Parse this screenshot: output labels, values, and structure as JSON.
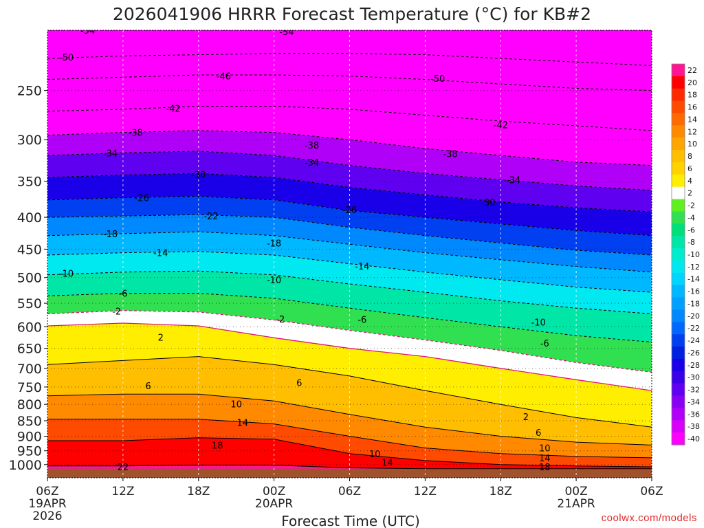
{
  "chart_data": {
    "type": "heatmap",
    "title": "2026041906 HRRR Forecast Temperature (°C) for KB#2",
    "xlabel": "Forecast Time (UTC)",
    "ylabel": "",
    "credit": "coolwx.com/models",
    "yscale": "log",
    "ylim": [
      1050,
      200
    ],
    "y_ticks": [
      250,
      300,
      350,
      400,
      450,
      500,
      550,
      600,
      650,
      700,
      750,
      800,
      850,
      900,
      950,
      1000
    ],
    "y_tick_labels": [
      "250",
      "300",
      "350",
      "400",
      "450",
      "500",
      "550",
      "600",
      "650",
      "700",
      "750",
      "800",
      "850",
      "900",
      "950",
      "1000"
    ],
    "x_hours": [
      0,
      6,
      12,
      18,
      24,
      30,
      36,
      42,
      48
    ],
    "x_tick_labels": [
      [
        "06Z",
        "19APR",
        "2026"
      ],
      [
        "12Z"
      ],
      [
        "18Z"
      ],
      [
        "00Z",
        "20APR"
      ],
      [
        "06Z"
      ],
      [
        "12Z"
      ],
      [
        "18Z"
      ],
      [
        "00Z",
        "21APR"
      ],
      [
        "06Z"
      ]
    ],
    "ground_level_hpa": 1015,
    "isotherms": [
      {
        "temp": -54,
        "p": [
          200,
          200,
          200,
          200,
          200,
          200,
          200,
          200,
          200
        ]
      },
      {
        "temp": -50,
        "p": [
          222,
          220,
          219,
          218,
          218,
          219,
          222,
          225,
          228
        ]
      },
      {
        "temp": -46,
        "p": [
          240,
          238,
          236,
          236,
          237,
          240,
          244,
          248,
          250
        ]
      },
      {
        "temp": -42,
        "p": [
          270,
          268,
          265,
          265,
          268,
          274,
          280,
          285,
          290
        ]
      },
      {
        "temp": -38,
        "p": [
          295,
          292,
          290,
          292,
          300,
          310,
          318,
          326,
          330
        ]
      },
      {
        "temp": -34,
        "p": [
          318,
          315,
          313,
          318,
          330,
          340,
          348,
          356,
          362
        ]
      },
      {
        "temp": -30,
        "p": [
          345,
          342,
          340,
          345,
          358,
          368,
          378,
          386,
          392
        ]
      },
      {
        "temp": -26,
        "p": [
          375,
          372,
          370,
          375,
          390,
          400,
          410,
          420,
          428
        ]
      },
      {
        "temp": -22,
        "p": [
          400,
          398,
          396,
          400,
          415,
          428,
          440,
          452,
          460
        ]
      },
      {
        "temp": -18,
        "p": [
          428,
          425,
          422,
          428,
          442,
          456,
          468,
          480,
          490
        ]
      },
      {
        "temp": -14,
        "p": [
          460,
          456,
          454,
          460,
          475,
          490,
          504,
          518,
          528
        ]
      },
      {
        "temp": -10,
        "p": [
          495,
          490,
          488,
          495,
          512,
          528,
          545,
          560,
          572
        ]
      },
      {
        "temp": -6,
        "p": [
          535,
          530,
          530,
          540,
          560,
          580,
          600,
          620,
          635
        ]
      },
      {
        "temp": -2,
        "p": [
          572,
          565,
          568,
          585,
          608,
          630,
          655,
          685,
          710
        ]
      },
      {
        "temp": 2,
        "p": [
          598,
          592,
          598,
          625,
          650,
          670,
          700,
          730,
          760
        ]
      },
      {
        "temp": 6,
        "p": [
          690,
          680,
          670,
          690,
          720,
          760,
          800,
          840,
          870
        ]
      },
      {
        "temp": 10,
        "p": [
          775,
          770,
          770,
          790,
          830,
          870,
          900,
          920,
          930
        ]
      },
      {
        "temp": 14,
        "p": [
          845,
          845,
          845,
          860,
          900,
          940,
          960,
          970,
          975
        ]
      },
      {
        "temp": 18,
        "p": [
          915,
          915,
          905,
          910,
          960,
          985,
          1000,
          1005,
          1008
        ]
      },
      {
        "temp": 22,
        "p": [
          1005,
          1005,
          1002,
          1002,
          1012,
          1015,
          1015,
          1015,
          1015
        ]
      }
    ],
    "contour_labels": [
      {
        "text": "-54",
        "h": 3.2,
        "p": 200
      },
      {
        "text": "-54",
        "h": 19,
        "p": 201
      },
      {
        "text": "-50",
        "h": 1.5,
        "p": 221
      },
      {
        "text": "-50",
        "h": 31,
        "p": 239
      },
      {
        "text": "-46",
        "h": 14,
        "p": 237
      },
      {
        "text": "-42",
        "h": 10,
        "p": 267
      },
      {
        "text": "-42",
        "h": 36,
        "p": 284
      },
      {
        "text": "-38",
        "h": 7,
        "p": 292
      },
      {
        "text": "-38",
        "h": 21,
        "p": 306
      },
      {
        "text": "-38",
        "h": 32,
        "p": 316
      },
      {
        "text": "-34",
        "h": 5,
        "p": 315
      },
      {
        "text": "-34",
        "h": 21,
        "p": 326
      },
      {
        "text": "-34",
        "h": 37,
        "p": 348
      },
      {
        "text": "-30",
        "h": 12,
        "p": 341
      },
      {
        "text": "-30",
        "h": 35,
        "p": 378
      },
      {
        "text": "-26",
        "h": 7.5,
        "p": 372
      },
      {
        "text": "-26",
        "h": 24,
        "p": 389
      },
      {
        "text": "-22",
        "h": 13,
        "p": 398
      },
      {
        "text": "-18",
        "h": 5,
        "p": 425
      },
      {
        "text": "-18",
        "h": 18,
        "p": 440
      },
      {
        "text": "-14",
        "h": 9,
        "p": 456
      },
      {
        "text": "-14",
        "h": 25,
        "p": 479
      },
      {
        "text": "-10",
        "h": 1.5,
        "p": 492
      },
      {
        "text": "-10",
        "h": 18,
        "p": 504
      },
      {
        "text": "-10",
        "h": 39,
        "p": 590
      },
      {
        "text": "-6",
        "h": 6,
        "p": 530
      },
      {
        "text": "-6",
        "h": 25,
        "p": 584
      },
      {
        "text": "-6",
        "h": 39.5,
        "p": 637
      },
      {
        "text": "-2",
        "h": 5.5,
        "p": 566
      },
      {
        "text": "-2",
        "h": 18.5,
        "p": 583
      },
      {
        "text": "2",
        "h": 9,
        "p": 624
      },
      {
        "text": "2",
        "h": 38,
        "p": 837
      },
      {
        "text": "6",
        "h": 8,
        "p": 746
      },
      {
        "text": "6",
        "h": 20,
        "p": 738
      },
      {
        "text": "6",
        "h": 39,
        "p": 887
      },
      {
        "text": "10",
        "h": 15,
        "p": 798
      },
      {
        "text": "10",
        "h": 26,
        "p": 960
      },
      {
        "text": "10",
        "h": 39.5,
        "p": 940
      },
      {
        "text": "14",
        "h": 15.5,
        "p": 855
      },
      {
        "text": "14",
        "h": 27,
        "p": 991
      },
      {
        "text": "14",
        "h": 39.5,
        "p": 975
      },
      {
        "text": "18",
        "h": 13.5,
        "p": 930
      },
      {
        "text": "18",
        "h": 39.5,
        "p": 1008
      },
      {
        "text": "22",
        "h": 6,
        "p": 1008
      }
    ],
    "colorbar": {
      "tick_labels": [
        "22",
        "20",
        "18",
        "16",
        "14",
        "12",
        "10",
        "8",
        "6",
        "4",
        "2",
        "-2",
        "-4",
        "-6",
        "-8",
        "-10",
        "-12",
        "-14",
        "-16",
        "-18",
        "-20",
        "-22",
        "-24",
        "-26",
        "-28",
        "-30",
        "-32",
        "-34",
        "-36",
        "-38",
        "-40"
      ],
      "colors": [
        "#ff1493",
        "#ff0000",
        "#ff2a00",
        "#ff4b00",
        "#ff6a00",
        "#ff8a00",
        "#ffa500",
        "#ffbe00",
        "#ffd200",
        "#ffee00",
        "#ffffff",
        "#60f020",
        "#30e050",
        "#00e07a",
        "#00e6a6",
        "#00ecce",
        "#00e8f0",
        "#00d4ff",
        "#00b8ff",
        "#00a0ff",
        "#0088ff",
        "#0068ff",
        "#0040f0",
        "#0020e0",
        "#1a00e8",
        "#3a00e8",
        "#6000f0",
        "#8800f4",
        "#b000f8",
        "#d800fa",
        "#ff00ff"
      ]
    },
    "ground_color": "#a0522d",
    "freezing_line_color": "#e0157a",
    "contour_color": "#000000",
    "grid": true
  }
}
